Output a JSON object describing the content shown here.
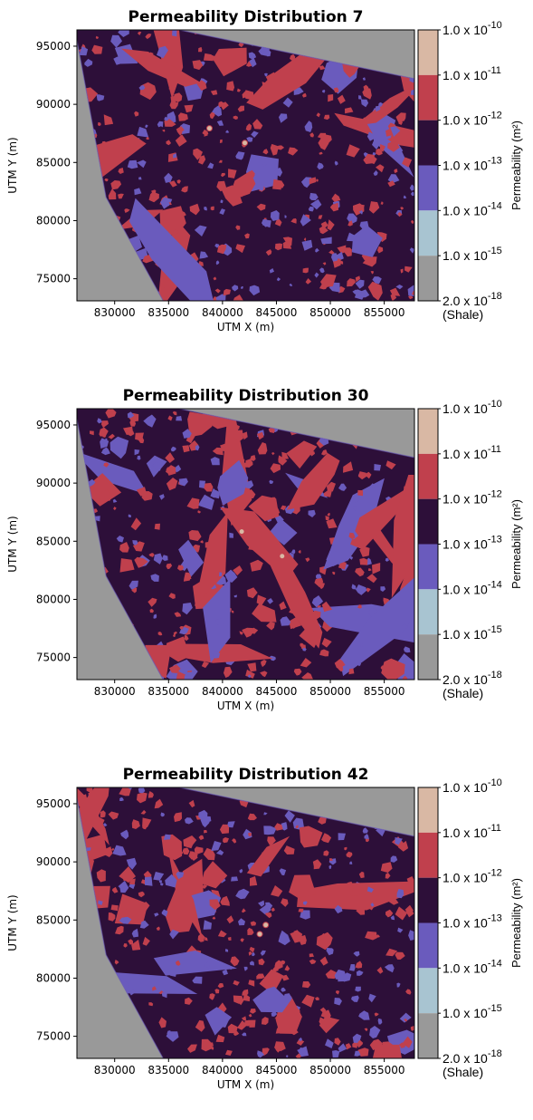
{
  "chart_data": [
    {
      "type": "heatmap",
      "title": "Permeability Distribution 7",
      "xlabel": "UTM X (m)",
      "ylabel": "UTM Y (m)",
      "xlim": [
        826500,
        857800
      ],
      "ylim": [
        73100,
        96400
      ],
      "xticks": [
        "830000",
        "835000",
        "840000",
        "845000",
        "850000",
        "855000"
      ],
      "yticks": [
        "75000",
        "80000",
        "85000",
        "90000",
        "95000"
      ],
      "colorbar": {
        "title": "Permeability (m²)",
        "levels": [
          "1.0 x 10",
          "1.0 x 10",
          "1.0 x 10",
          "1.0 x 10",
          "1.0 x 10",
          "1.0 x 10",
          "2.0 x 10"
        ],
        "exponents": [
          "-10",
          "-11",
          "-12",
          "-13",
          "-14",
          "-15",
          "-18"
        ],
        "shale_label": "(Shale)",
        "colors": [
          "#d9b8a4",
          "#c0404d",
          "#2d0f39",
          "#6a5bbd",
          "#a8c4d1",
          "#999999"
        ]
      },
      "pattern_seed": 7
    },
    {
      "type": "heatmap",
      "title": "Permeability Distribution 30",
      "xlabel": "UTM X (m)",
      "ylabel": "UTM Y (m)",
      "xlim": [
        826500,
        857800
      ],
      "ylim": [
        73100,
        96400
      ],
      "xticks": [
        "830000",
        "835000",
        "840000",
        "845000",
        "850000",
        "855000"
      ],
      "yticks": [
        "75000",
        "80000",
        "85000",
        "90000",
        "95000"
      ],
      "colorbar": {
        "title": "Permeability (m²)",
        "levels": [
          "1.0 x 10",
          "1.0 x 10",
          "1.0 x 10",
          "1.0 x 10",
          "1.0 x 10",
          "1.0 x 10",
          "2.0 x 10"
        ],
        "exponents": [
          "-10",
          "-11",
          "-12",
          "-13",
          "-14",
          "-15",
          "-18"
        ],
        "shale_label": "(Shale)",
        "colors": [
          "#d9b8a4",
          "#c0404d",
          "#2d0f39",
          "#6a5bbd",
          "#a8c4d1",
          "#999999"
        ]
      },
      "pattern_seed": 30
    },
    {
      "type": "heatmap",
      "title": "Permeability Distribution 42",
      "xlabel": "UTM X (m)",
      "ylabel": "UTM Y (m)",
      "xlim": [
        826500,
        857800
      ],
      "ylim": [
        73100,
        96400
      ],
      "xticks": [
        "830000",
        "835000",
        "840000",
        "845000",
        "850000",
        "855000"
      ],
      "yticks": [
        "75000",
        "80000",
        "85000",
        "90000",
        "95000"
      ],
      "colorbar": {
        "title": "Permeability (m²)",
        "levels": [
          "1.0 x 10",
          "1.0 x 10",
          "1.0 x 10",
          "1.0 x 10",
          "1.0 x 10",
          "1.0 x 10",
          "2.0 x 10"
        ],
        "exponents": [
          "-10",
          "-11",
          "-12",
          "-13",
          "-14",
          "-15",
          "-18"
        ],
        "shale_label": "(Shale)",
        "colors": [
          "#d9b8a4",
          "#c0404d",
          "#2d0f39",
          "#6a5bbd",
          "#a8c4d1",
          "#999999"
        ]
      },
      "pattern_seed": 42
    }
  ]
}
